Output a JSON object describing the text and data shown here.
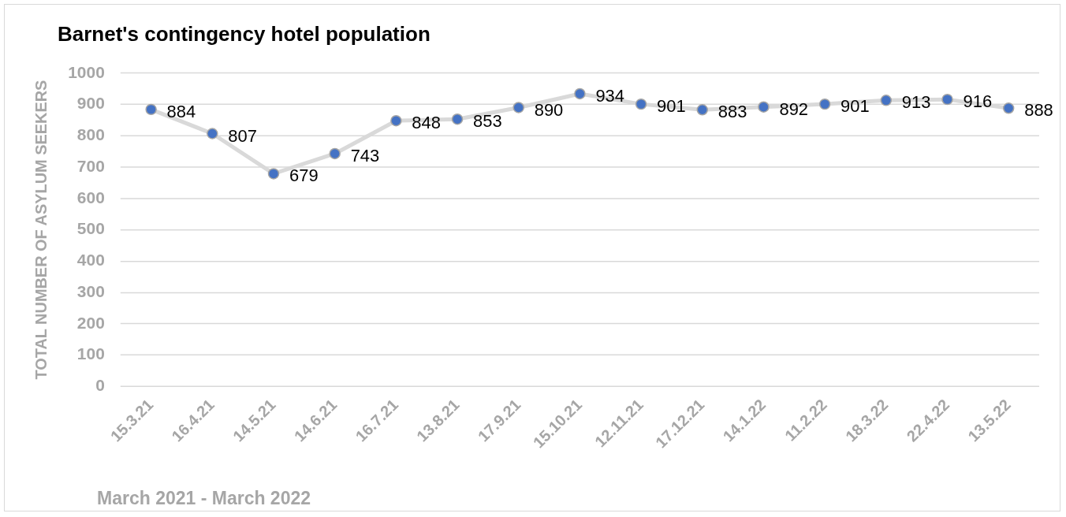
{
  "chart_data": {
    "type": "line",
    "title": "Barnet's contingency hotel population",
    "ylabel": "TOTAL NUMBER OF ASYLUM SEEKERS",
    "xlabel": "March 2021 - March 2022",
    "categories": [
      "15.3.21",
      "16.4.21",
      "14.5.21",
      "14.6.21",
      "16.7.21",
      "13.8.21",
      "17.9.21",
      "15.10.21",
      "12.11.21",
      "17.12.21",
      "14.1.22",
      "11.2.22",
      "18.3.22",
      "22.4.22",
      "13.5.22"
    ],
    "values": [
      884,
      807,
      679,
      743,
      848,
      853,
      890,
      934,
      901,
      883,
      892,
      901,
      913,
      916,
      888
    ],
    "color": "#4472c4",
    "ylim": [
      0,
      1000
    ],
    "yticks": [
      0,
      100,
      200,
      300,
      400,
      500,
      600,
      700,
      800,
      900,
      1000
    ],
    "grid": "y",
    "marker": "circle",
    "line_style": "solid",
    "data_labels": true
  }
}
